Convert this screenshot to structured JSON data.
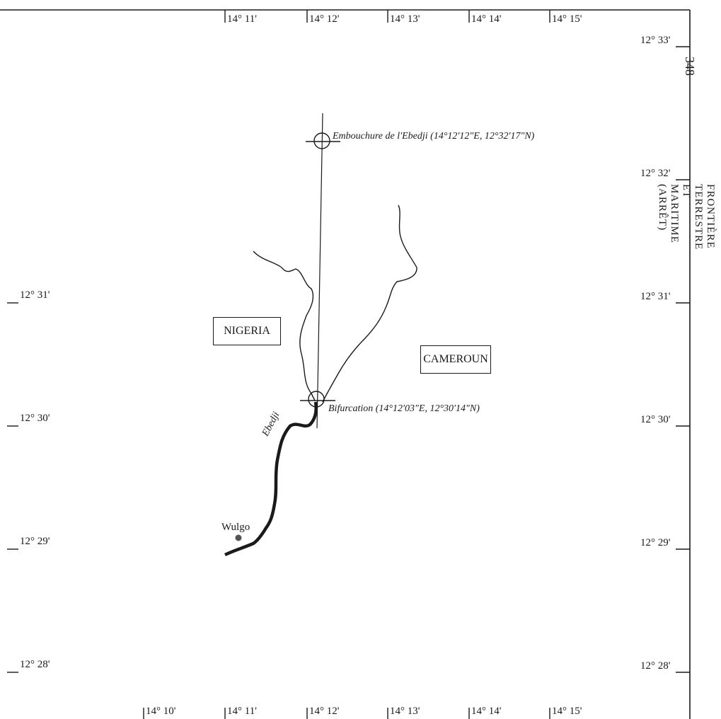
{
  "page": {
    "number": "348",
    "running_head": "FRONTIÈRE TERRESTRE ET MARITIME (ARRÊT)"
  },
  "map": {
    "longitude_labels_top": [
      "14° 11'",
      "14° 12'",
      "14° 13'",
      "14° 14'",
      "14° 15'"
    ],
    "longitude_labels_bottom": [
      "14° 10'",
      "14° 11'",
      "14° 12'",
      "14° 13'",
      "14° 14'",
      "14° 15'"
    ],
    "latitude_labels_left": [
      "12° 31'",
      "12° 30'",
      "12° 29'",
      "12° 28'"
    ],
    "latitude_labels_right": [
      "12° 33'",
      "12° 32'",
      "12° 31'",
      "12° 30'",
      "12° 29'",
      "12° 28'"
    ],
    "countries": {
      "west": "NIGERIA",
      "east": "CAMEROUN"
    },
    "river": "Ebedji",
    "town": "Wulgo",
    "points": {
      "mouth": "Embouchure de l'Ebedji (14°12'12\"E, 12°32'17\"N)",
      "bifurcation": "Bifurcation (14°12'03\"E, 12°30'14\"N)"
    }
  }
}
